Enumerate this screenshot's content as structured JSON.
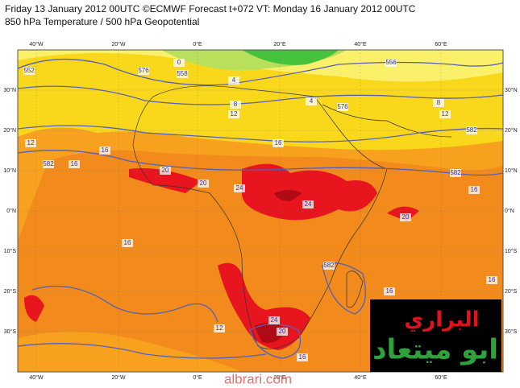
{
  "header": {
    "line1": "Friday 13 January 2012 00UTC ©ECMWF Forecast t+072 VT: Monday 16 January 2012 00UTC",
    "line2": "850 hPa Temperature / 500 hPa Geopotential"
  },
  "map": {
    "longitude_labels": [
      "40°W",
      "20°W",
      "0°E",
      "20°E",
      "40°E",
      "60°E"
    ],
    "latitude_labels": [
      "30°N",
      "20°N",
      "10°N",
      "0°N",
      "10°S",
      "20°S",
      "30°S"
    ],
    "contour_labels": [
      "552",
      "576",
      "558",
      "0",
      "4",
      "8",
      "12",
      "576",
      "4",
      "8",
      "12",
      "556",
      "582",
      "12",
      "16",
      "16",
      "582",
      "16",
      "20",
      "20",
      "24",
      "24",
      "20",
      "582",
      "16",
      "16",
      "16",
      "12",
      "582",
      "16",
      "16",
      "20",
      "24"
    ]
  },
  "logo": {
    "line1": "البراري",
    "line2": "ابو ميتعاد"
  },
  "watermark": "albrari.com"
}
